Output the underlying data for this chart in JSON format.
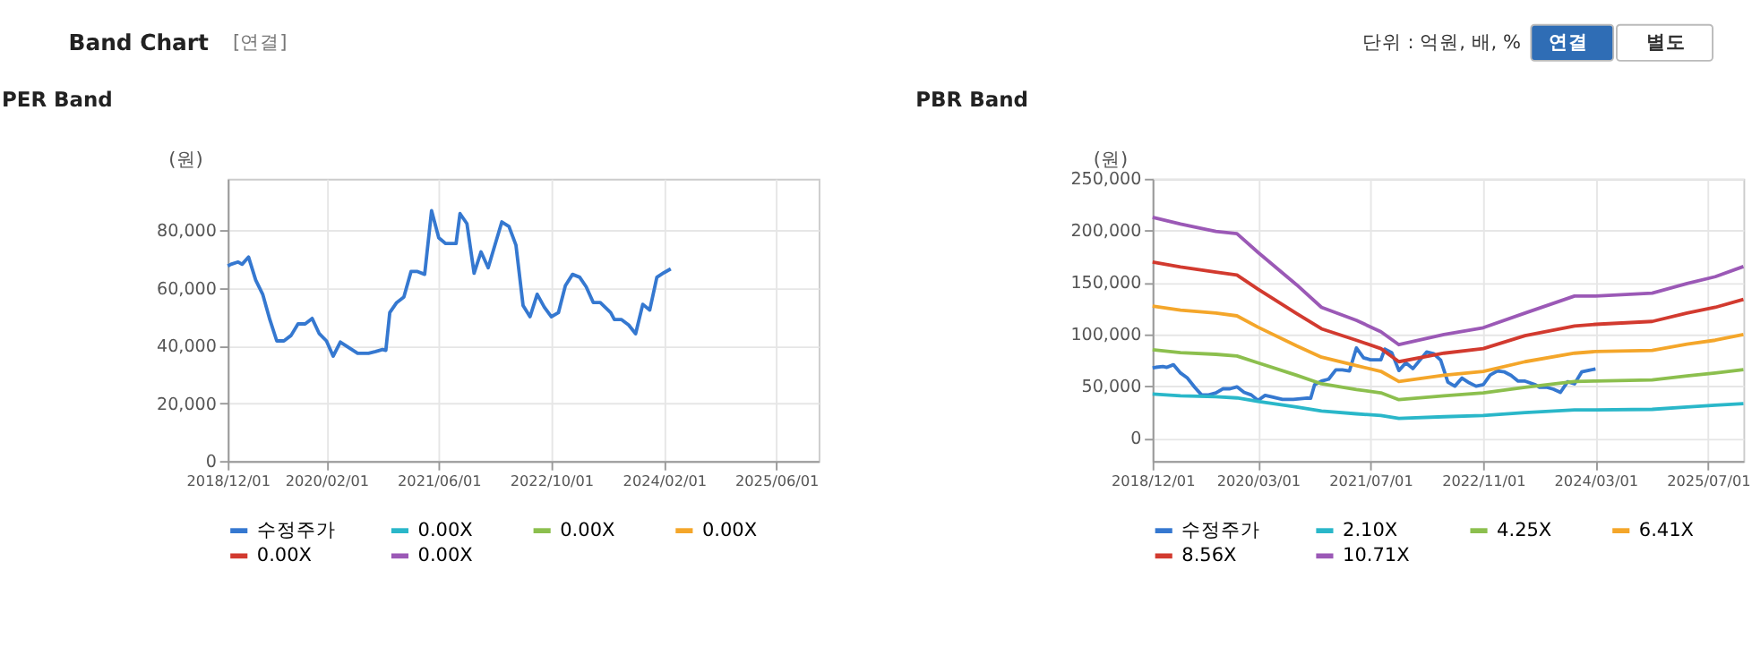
{
  "chart_data": [
    {
      "type": "line",
      "title": "PER Band",
      "ylabel": "(원)",
      "annotations": [
        "Band Chart",
        "[연결]",
        "단위 : 억원, 배, %",
        "연결",
        "별도"
      ],
      "x": [
        "2018-12-01",
        "2018-12-15",
        "2019-01-15",
        "2019-02-01",
        "2019-03-01",
        "2019-04-01",
        "2019-05-01",
        "2019-06-01",
        "2019-07-01",
        "2019-08-01",
        "2019-09-01",
        "2019-10-01",
        "2019-11-01",
        "2019-12-01",
        "2020-01-01",
        "2020-02-01",
        "2020-03-01",
        "2020-04-01",
        "2020-05-01",
        "2020-06-15",
        "2020-08-01",
        "2020-09-01",
        "2020-10-01",
        "2020-10-15",
        "2020-11-01",
        "2020-12-01",
        "2021-01-01",
        "2021-02-01",
        "2021-03-01",
        "2021-04-01",
        "2021-05-01",
        "2021-06-01",
        "2021-07-01",
        "2021-08-15",
        "2021-09-01",
        "2021-10-01",
        "2021-11-01",
        "2021-12-01",
        "2022-01-01",
        "2022-02-01",
        "2022-03-01",
        "2022-04-01",
        "2022-05-01",
        "2022-06-01",
        "2022-07-01",
        "2022-08-01",
        "2022-09-01",
        "2022-10-01",
        "2022-11-01",
        "2022-12-01",
        "2023-01-01",
        "2023-02-01",
        "2023-03-01",
        "2023-04-01",
        "2023-05-01",
        "2023-06-15",
        "2023-07-01",
        "2023-08-01",
        "2023-09-01",
        "2023-10-01",
        "2023-11-01",
        "2023-12-01",
        "2024-01-01",
        "2024-02-01",
        "2024-03-01"
      ],
      "series": [
        {
          "name": "수정주가",
          "color": "#3578d0",
          "values": [
            67700,
            68300,
            69100,
            68300,
            70800,
            62800,
            57900,
            49100,
            41700,
            41700,
            43600,
            47600,
            47600,
            49500,
            44200,
            41700,
            36400,
            41300,
            39700,
            37400,
            37400,
            38000,
            38700,
            38400,
            51500,
            55000,
            56900,
            65800,
            65800,
            64800,
            86900,
            77500,
            75500,
            75500,
            85900,
            82400,
            65200,
            72600,
            67100,
            75500,
            83000,
            81400,
            75000,
            54000,
            50100,
            57900,
            53400,
            50100,
            51500,
            60900,
            64800,
            63800,
            60500,
            55000,
            55000,
            51500,
            49100,
            49100,
            47200,
            44200,
            54400,
            52400,
            63800,
            65400,
            66700
          ]
        },
        {
          "name": "0.00X",
          "color": "#2ab7c9",
          "values": [
            null,
            null,
            null,
            null,
            null,
            null,
            null,
            null,
            null,
            null,
            null,
            null,
            null,
            null,
            null,
            null,
            null,
            null,
            null,
            null,
            null,
            null,
            null,
            null,
            null,
            null,
            null,
            null,
            null,
            null,
            null,
            null,
            null,
            null,
            null,
            null,
            null,
            null,
            null,
            null,
            null,
            null,
            null,
            null,
            null,
            null,
            null,
            null,
            null,
            null,
            null,
            null,
            null,
            null,
            null,
            null,
            null,
            null,
            null,
            null,
            null,
            null,
            null,
            null,
            null
          ]
        },
        {
          "name": "0.00X",
          "color": "#8cbf4e",
          "values": [
            null,
            null,
            null,
            null,
            null,
            null,
            null,
            null,
            null,
            null,
            null,
            null,
            null,
            null,
            null,
            null,
            null,
            null,
            null,
            null,
            null,
            null,
            null,
            null,
            null,
            null,
            null,
            null,
            null,
            null,
            null,
            null,
            null,
            null,
            null,
            null,
            null,
            null,
            null,
            null,
            null,
            null,
            null,
            null,
            null,
            null,
            null,
            null,
            null,
            null,
            null,
            null,
            null,
            null,
            null,
            null,
            null,
            null,
            null,
            null,
            null,
            null,
            null,
            null,
            null
          ]
        },
        {
          "name": "0.00X",
          "color": "#f4a62a",
          "values": [
            null,
            null,
            null,
            null,
            null,
            null,
            null,
            null,
            null,
            null,
            null,
            null,
            null,
            null,
            null,
            null,
            null,
            null,
            null,
            null,
            null,
            null,
            null,
            null,
            null,
            null,
            null,
            null,
            null,
            null,
            null,
            null,
            null,
            null,
            null,
            null,
            null,
            null,
            null,
            null,
            null,
            null,
            null,
            null,
            null,
            null,
            null,
            null,
            null,
            null,
            null,
            null,
            null,
            null,
            null,
            null,
            null,
            null,
            null,
            null,
            null,
            null,
            null,
            null,
            null
          ]
        },
        {
          "name": "0.00X",
          "color": "#d23a2f",
          "values": [
            null,
            null,
            null,
            null,
            null,
            null,
            null,
            null,
            null,
            null,
            null,
            null,
            null,
            null,
            null,
            null,
            null,
            null,
            null,
            null,
            null,
            null,
            null,
            null,
            null,
            null,
            null,
            null,
            null,
            null,
            null,
            null,
            null,
            null,
            null,
            null,
            null,
            null,
            null,
            null,
            null,
            null,
            null,
            null,
            null,
            null,
            null,
            null,
            null,
            null,
            null,
            null,
            null,
            null,
            null,
            null,
            null,
            null,
            null,
            null,
            null,
            null,
            null,
            null,
            null
          ]
        },
        {
          "name": "0.00X",
          "color": "#9b59b6",
          "values": [
            null,
            null,
            null,
            null,
            null,
            null,
            null,
            null,
            null,
            null,
            null,
            null,
            null,
            null,
            null,
            null,
            null,
            null,
            null,
            null,
            null,
            null,
            null,
            null,
            null,
            null,
            null,
            null,
            null,
            null,
            null,
            null,
            null,
            null,
            null,
            null,
            null,
            null,
            null,
            null,
            null,
            null,
            null,
            null,
            null,
            null,
            null,
            null,
            null,
            null,
            null,
            null,
            null,
            null,
            null,
            null,
            null,
            null,
            null,
            null,
            null,
            null,
            null,
            null,
            null
          ]
        }
      ],
      "xlim": [
        "2018-12-01",
        "2025-12-01"
      ],
      "xticks": [
        {
          "value": "2018-12-01",
          "label": "2018/12/01"
        },
        {
          "value": "2020-02-01",
          "label": "2020/02/01"
        },
        {
          "value": "2021-06-01",
          "label": "2021/06/01"
        },
        {
          "value": "2022-10-01",
          "label": "2022/10/01"
        },
        {
          "value": "2024-02-01",
          "label": "2024/02/01"
        },
        {
          "value": "2025-06-01",
          "label": "2025/06/01"
        }
      ],
      "ylim": [
        0,
        98000
      ],
      "yticks": [
        {
          "value": 0,
          "label": "0"
        },
        {
          "value": 20000,
          "label": "20,000"
        },
        {
          "value": 40000,
          "label": "40,000"
        },
        {
          "value": 60000,
          "label": "60,000"
        },
        {
          "value": 80000,
          "label": "80,000"
        }
      ],
      "grid": true,
      "legend": "bottom"
    },
    {
      "type": "line",
      "title": "PBR Band",
      "ylabel": "(원)",
      "x": [
        "2018-12-01",
        "2019-04-01",
        "2019-09-01",
        "2019-12-01",
        "2020-03-01",
        "2020-08-15",
        "2020-12-01",
        "2021-05-01",
        "2021-08-15",
        "2021-11-01",
        "2022-05-15",
        "2022-11-01",
        "2023-05-01",
        "2023-12-01",
        "2024-03-01",
        "2024-11-01",
        "2025-04-01",
        "2025-08-01",
        "2025-12-01"
      ],
      "series": [
        {
          "name": "수정주가",
          "color": "#3578d0",
          "x": [
            "2018-12-01",
            "2018-12-15",
            "2019-01-15",
            "2019-02-01",
            "2019-03-01",
            "2019-04-01",
            "2019-05-01",
            "2019-06-01",
            "2019-07-01",
            "2019-08-01",
            "2019-09-01",
            "2019-10-01",
            "2019-11-01",
            "2019-12-01",
            "2020-01-01",
            "2020-02-01",
            "2020-03-01",
            "2020-04-01",
            "2020-05-01",
            "2020-06-15",
            "2020-08-01",
            "2020-09-01",
            "2020-10-01",
            "2020-10-15",
            "2020-11-01",
            "2020-12-01",
            "2021-01-01",
            "2021-02-01",
            "2021-03-01",
            "2021-04-01",
            "2021-05-01",
            "2021-06-01",
            "2021-07-01",
            "2021-08-15",
            "2021-09-01",
            "2021-10-01",
            "2021-11-01",
            "2021-12-01",
            "2022-01-01",
            "2022-02-01",
            "2022-03-01",
            "2022-04-01",
            "2022-05-01",
            "2022-06-01",
            "2022-07-01",
            "2022-08-01",
            "2022-09-01",
            "2022-10-01",
            "2022-11-01",
            "2022-12-01",
            "2023-01-01",
            "2023-02-01",
            "2023-03-01",
            "2023-04-01",
            "2023-05-01",
            "2023-06-15",
            "2023-07-01",
            "2023-08-01",
            "2023-09-01",
            "2023-10-01",
            "2023-11-01",
            "2023-12-01",
            "2024-01-01",
            "2024-02-01",
            "2024-03-01"
          ],
          "values": [
            67700,
            68300,
            69100,
            68300,
            70800,
            62800,
            57900,
            49100,
            41700,
            41700,
            43600,
            47600,
            47600,
            49500,
            44200,
            41700,
            36400,
            41300,
            39700,
            37400,
            37400,
            38000,
            38700,
            38400,
            51500,
            55000,
            56900,
            65800,
            65800,
            64800,
            86900,
            77500,
            75500,
            75500,
            85900,
            82400,
            65200,
            72600,
            67100,
            75500,
            83000,
            81400,
            75000,
            54000,
            50100,
            57900,
            53400,
            50100,
            51500,
            60900,
            64800,
            63800,
            60500,
            55000,
            55000,
            51500,
            49100,
            49100,
            47200,
            44200,
            54400,
            52400,
            63800,
            65400,
            66700
          ]
        },
        {
          "name": "2.10X",
          "color": "#2ab7c9",
          "values": [
            42600,
            40900,
            39900,
            38800,
            35500,
            30000,
            26200,
            23500,
            21800,
            19100,
            20700,
            21800,
            24600,
            27300,
            27300,
            27800,
            30000,
            31700,
            33300
          ]
        },
        {
          "name": "4.25X",
          "color": "#8cbf4e",
          "values": [
            85200,
            82400,
            80800,
            79200,
            72600,
            60600,
            52400,
            46900,
            43700,
            37100,
            40900,
            43700,
            49100,
            54600,
            55100,
            56200,
            60000,
            62800,
            66100
          ]
        },
        {
          "name": "6.41X",
          "color": "#f4a62a",
          "values": [
            127200,
            123400,
            120600,
            117900,
            107000,
            89000,
            78100,
            69900,
            64400,
            54600,
            60600,
            64400,
            73700,
            81900,
            83500,
            84600,
            90600,
            94400,
            99900
          ]
        },
        {
          "name": "8.56X",
          "color": "#d23a2f",
          "values": [
            169800,
            164900,
            160000,
            157200,
            143600,
            120100,
            105400,
            94400,
            86300,
            73700,
            81900,
            86300,
            98800,
            108100,
            109700,
            112500,
            120600,
            126100,
            133700
          ]
        },
        {
          "name": "10.71X",
          "color": "#9b59b6",
          "values": [
            212900,
            206300,
            199200,
            197100,
            179100,
            147900,
            126100,
            113500,
            102600,
            90100,
            99900,
            106400,
            120600,
            137000,
            137000,
            139700,
            149000,
            155600,
            165400
          ]
        }
      ],
      "xlim": [
        "2018-12-01",
        "2025-12-01"
      ],
      "xticks": [
        {
          "value": "2018-12-01",
          "label": "2018/12/01"
        },
        {
          "value": "2020-03-01",
          "label": "2020/03/01"
        },
        {
          "value": "2021-07-01",
          "label": "2021/07/01"
        },
        {
          "value": "2022-11-01",
          "label": "2022/11/01"
        },
        {
          "value": "2024-03-01",
          "label": "2024/03/01"
        },
        {
          "value": "2025-07-01",
          "label": "2025/07/01"
        }
      ],
      "ylim": [
        -22000,
        250000
      ],
      "yticks": [
        {
          "value": 0,
          "label": "0"
        },
        {
          "value": 50000,
          "label": "50,000"
        },
        {
          "value": 100000,
          "label": "100,000"
        },
        {
          "value": 150000,
          "label": "150,000"
        },
        {
          "value": 200000,
          "label": "200,000"
        },
        {
          "value": 250000,
          "label": "250,000"
        }
      ],
      "grid": true,
      "legend": "bottom"
    }
  ]
}
